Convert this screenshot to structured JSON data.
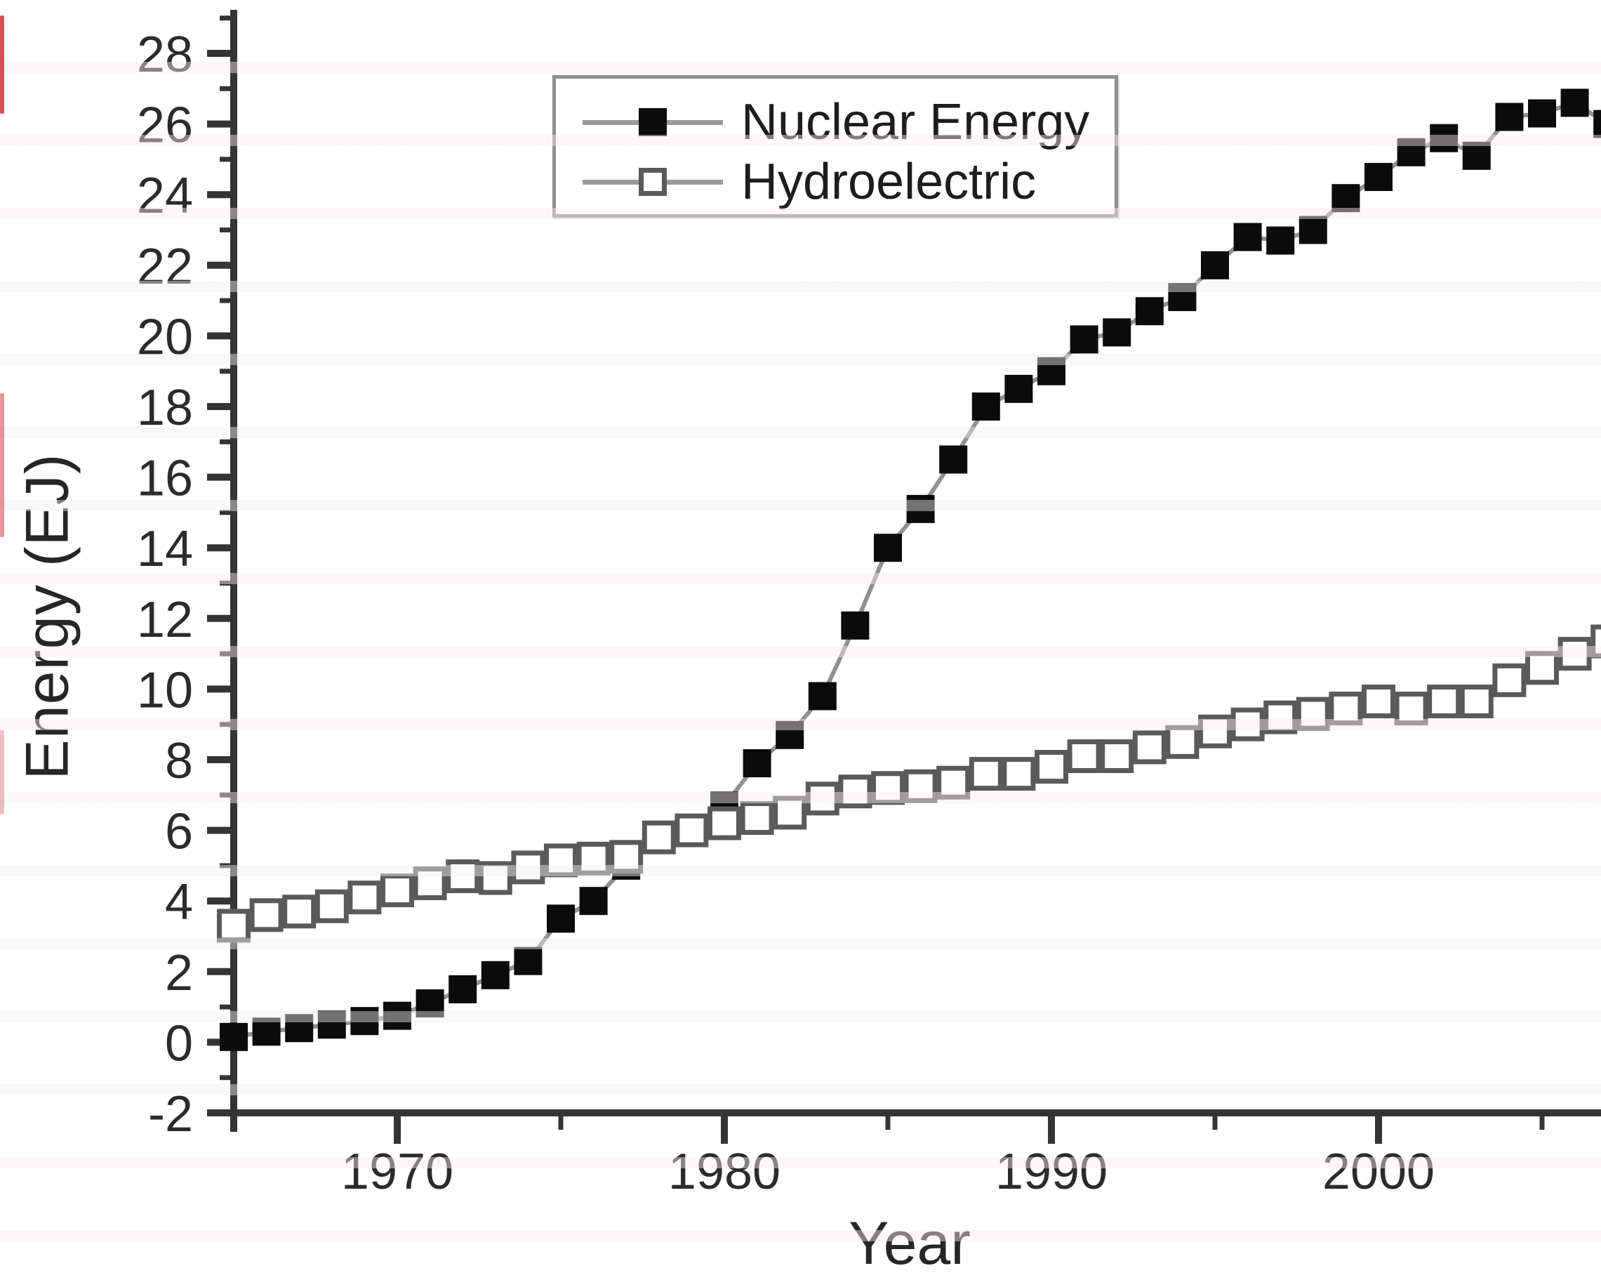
{
  "figure": {
    "ylabel": "Energy (EJ)",
    "xlabel": "Year"
  },
  "colors": {
    "background": "#ffffff",
    "axis": "#343434",
    "tick_text": "#2b2b2b",
    "connector_line": "#909090",
    "nuclear_marker": "#0b0b0b",
    "hydro_marker_stroke": "#5a5a5a",
    "hydro_marker_fill": "#ffffff",
    "legend_border": "#8f8f8f",
    "scan_artifact_red": "#cd232d"
  },
  "chart_data": {
    "type": "line",
    "title": "",
    "xlabel": "Year",
    "ylabel": "Energy (EJ)",
    "grid": false,
    "legend_position": "top-center",
    "xlim": [
      1965,
      2006.8
    ],
    "ylim": [
      -2,
      29.2
    ],
    "x_ticks_major": [
      1970,
      1980,
      1990,
      2000
    ],
    "x_ticks_minor": [
      1975,
      1985,
      1995,
      2005
    ],
    "y_ticks_major": [
      -2,
      0,
      2,
      4,
      6,
      8,
      10,
      12,
      14,
      16,
      18,
      20,
      22,
      24,
      26,
      28
    ],
    "y_ticks_minor": [
      -1,
      1,
      3,
      5,
      7,
      9,
      11,
      13,
      15,
      17,
      19,
      21,
      23,
      25,
      27,
      29
    ],
    "x": [
      1965,
      1966,
      1967,
      1968,
      1969,
      1970,
      1971,
      1972,
      1973,
      1974,
      1975,
      1976,
      1977,
      1978,
      1979,
      1980,
      1981,
      1982,
      1983,
      1984,
      1985,
      1986,
      1987,
      1988,
      1989,
      1990,
      1991,
      1992,
      1993,
      1994,
      1995,
      1996,
      1997,
      1998,
      1999,
      2000,
      2001,
      2002,
      2003,
      2004,
      2005,
      2006,
      2007
    ],
    "series": [
      {
        "name": "Nuclear Energy",
        "marker": "filled-square",
        "values": [
          0.15,
          0.3,
          0.4,
          0.5,
          0.6,
          0.75,
          1.1,
          1.5,
          1.9,
          2.3,
          3.5,
          4.0,
          5.0,
          5.8,
          6.0,
          6.7,
          7.9,
          8.7,
          9.8,
          11.8,
          14.0,
          15.1,
          16.5,
          18.0,
          18.5,
          19.0,
          19.9,
          20.1,
          20.7,
          21.1,
          22.0,
          22.8,
          22.7,
          23.0,
          23.9,
          24.5,
          25.2,
          25.6,
          25.1,
          26.2,
          26.3,
          26.6,
          26.0
        ]
      },
      {
        "name": "Hydroelectric",
        "marker": "open-square",
        "values": [
          3.3,
          3.6,
          3.7,
          3.85,
          4.1,
          4.3,
          4.5,
          4.7,
          4.65,
          4.95,
          5.15,
          5.2,
          5.25,
          5.8,
          6.0,
          6.2,
          6.35,
          6.5,
          6.9,
          7.1,
          7.2,
          7.25,
          7.35,
          7.6,
          7.6,
          7.8,
          8.1,
          8.1,
          8.35,
          8.5,
          8.8,
          9.0,
          9.2,
          9.3,
          9.45,
          9.65,
          9.45,
          9.65,
          9.65,
          10.25,
          10.6,
          11.0,
          11.35
        ]
      }
    ]
  }
}
